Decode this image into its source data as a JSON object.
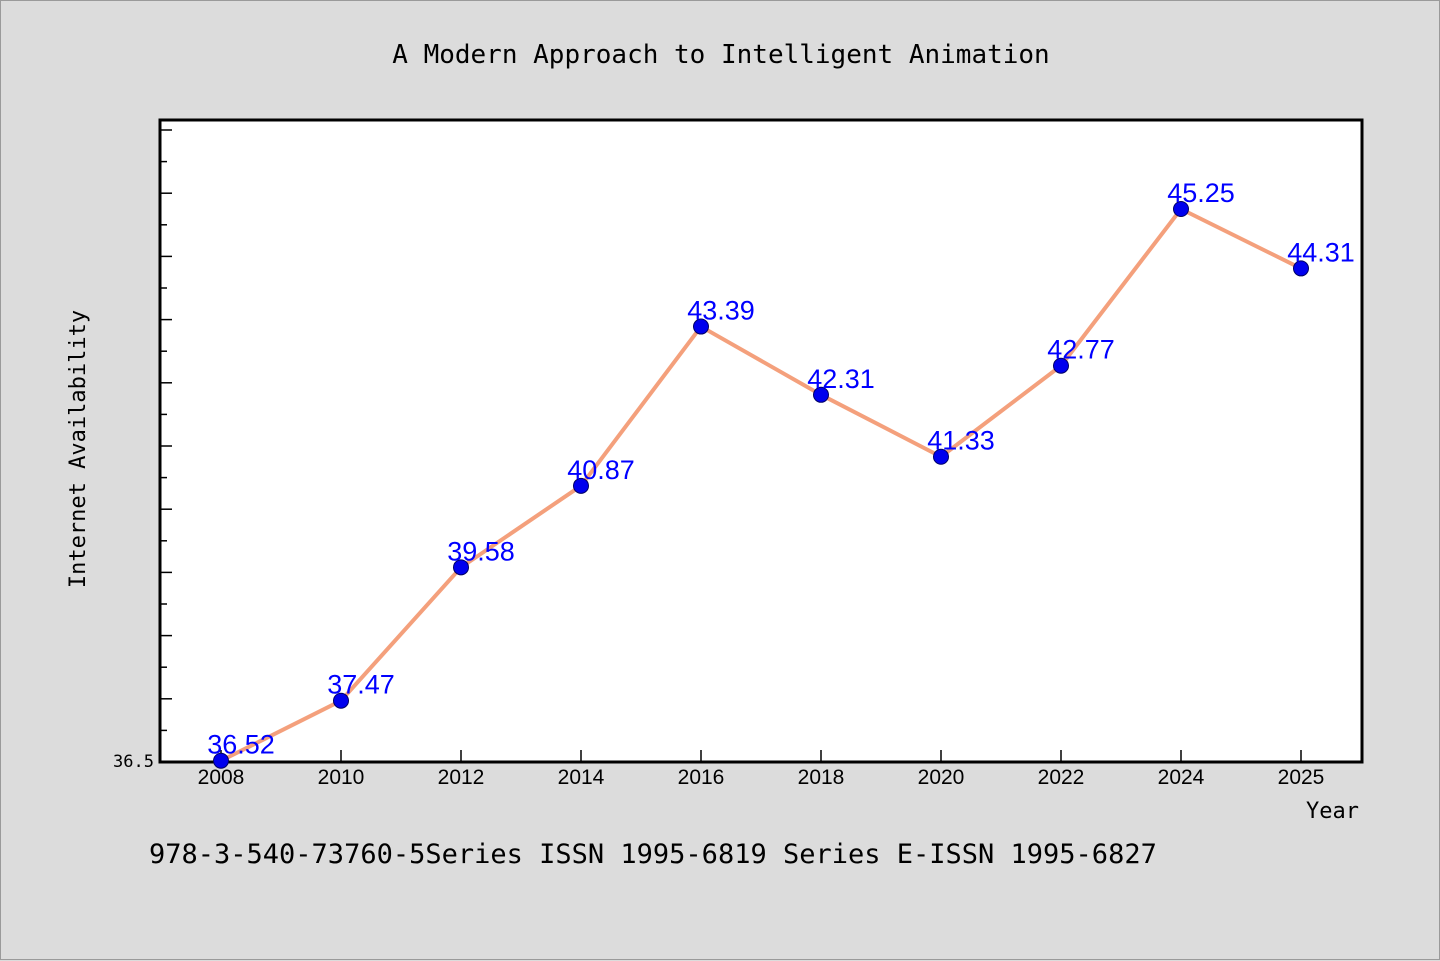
{
  "chart_data": {
    "type": "line",
    "title": "A Modern Approach to Intelligent Animation",
    "xlabel": "Year",
    "ylabel": "Internet Availability",
    "footer": "978-3-540-73760-5Series ISSN 1995-6819 Series E-ISSN 1995-6827",
    "y_min_label": "36.5",
    "ylim": [
      36.5,
      46.5
    ],
    "x": [
      "2008",
      "2010",
      "2012",
      "2014",
      "2016",
      "2018",
      "2020",
      "2022",
      "2024",
      "2025"
    ],
    "series": [
      {
        "values": [
          36.52,
          37.47,
          39.58,
          40.87,
          43.39,
          42.31,
          41.33,
          42.77,
          45.25,
          44.31
        ],
        "labels": [
          "36.52",
          "37.47",
          "39.58",
          "40.87",
          "43.39",
          "42.31",
          "41.33",
          "42.77",
          "45.25",
          "44.31"
        ],
        "line_color": "#f4a07c",
        "marker_color": "#0000ee",
        "label_color": "#0000ff"
      }
    ],
    "grid": false,
    "legend": "none"
  }
}
